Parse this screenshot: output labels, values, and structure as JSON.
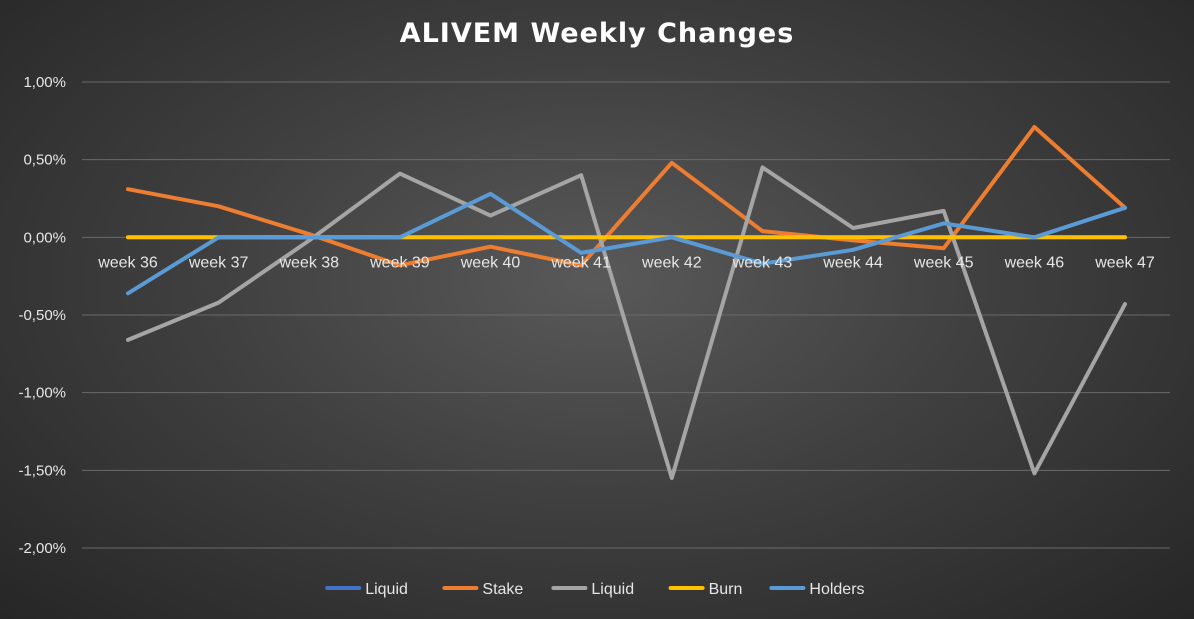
{
  "chart_data": {
    "type": "line",
    "title": "ALIVEM Weekly Changes",
    "xlabel": "",
    "ylabel": "",
    "ylim": [
      -2.0,
      1.0
    ],
    "y_tick_step": 0.5,
    "y_tick_labels": [
      "1,00%",
      "0,50%",
      "0,00%",
      "-0,50%",
      "-1,00%",
      "-1,50%",
      "-2,00%"
    ],
    "grid": true,
    "legend_position": "bottom",
    "categories": [
      "week 36",
      "week 37",
      "week 38",
      "week 39",
      "week 40",
      "week 41",
      "week 42",
      "week 43",
      "week 44",
      "week 45",
      "week 46",
      "week 47"
    ],
    "series": [
      {
        "name": "Liquid",
        "color": "#4472c4",
        "values": [
          0,
          0,
          0,
          0,
          0,
          0,
          0,
          0,
          0,
          0,
          0,
          0
        ]
      },
      {
        "name": "Stake",
        "color": "#ed7d31",
        "values": [
          0.31,
          0.2,
          0.02,
          -0.18,
          -0.06,
          -0.18,
          0.48,
          0.04,
          -0.02,
          -0.07,
          0.71,
          0.19
        ]
      },
      {
        "name": "Liquid",
        "color": "#a5a5a5",
        "values": [
          -0.66,
          -0.42,
          -0.02,
          0.41,
          0.14,
          0.4,
          -1.55,
          0.45,
          0.06,
          0.17,
          -1.52,
          -0.43
        ]
      },
      {
        "name": "Burn",
        "color": "#ffc000",
        "values": [
          0,
          0,
          0,
          0,
          0,
          0,
          0,
          0,
          0,
          0,
          0,
          0
        ]
      },
      {
        "name": "Holders",
        "color": "#5b9bd5",
        "values": [
          -0.36,
          0,
          0,
          0,
          0.28,
          -0.1,
          0,
          -0.17,
          -0.08,
          0.09,
          0,
          0.19
        ]
      }
    ]
  }
}
